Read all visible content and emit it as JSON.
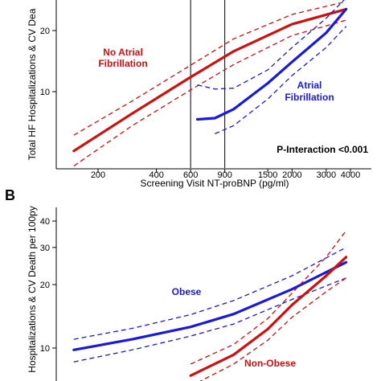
{
  "colors": {
    "red": "#cc1111",
    "blue": "#1a1ad6",
    "axis": "#000000",
    "background": "#ffffff"
  },
  "panel_a": {
    "ylabel": "Total HF Hospitalizations & CV Dea",
    "xlabel": "Screening Visit NT-proBNP (pg/ml)",
    "annotation": "P-Interaction <0.001",
    "label_red_line1": "No Atrial",
    "label_red_line2": "Fibrillation",
    "label_blue_line1": "Atrial",
    "label_blue_line2": "Fibrillation"
  },
  "panel_b": {
    "panel_letter": "B",
    "ylabel": "Hospitalizations & CV Death per 100py",
    "label_blue": "Obese",
    "label_red": "Non-Obese"
  },
  "chart_data": [
    {
      "type": "line",
      "panel": "A",
      "xlabel": "Screening Visit NT-proBNP (pg/ml)",
      "ylabel": "Total HF Hospitalizations & CV Dea",
      "x_scale": "log",
      "y_scale": "log",
      "x_ticks": [
        200,
        400,
        600,
        900,
        1500,
        2000,
        3000,
        4000
      ],
      "y_ticks": [
        10,
        20
      ],
      "vlines": [
        600,
        900
      ],
      "series": [
        {
          "name": "No Atrial Fibrillation",
          "color": "#cc1111",
          "x": [
            150,
            300,
            600,
            1000,
            2000,
            3800
          ],
          "y": [
            5.1,
            7.8,
            11.8,
            15.8,
            21.5,
            25.5
          ],
          "lower": [
            4.3,
            6.8,
            10.2,
            13.6,
            18.9,
            22.5
          ],
          "upper": [
            6.1,
            9.0,
            13.5,
            18.2,
            24.0,
            27.8
          ]
        },
        {
          "name": "Atrial Fibrillation",
          "color": "#1a1ad6",
          "x": [
            650,
            800,
            1000,
            1500,
            2000,
            3000,
            3800
          ],
          "y": [
            7.3,
            7.4,
            8.2,
            11.0,
            14.0,
            19.5,
            25.5
          ],
          "lower": [
            null,
            6.2,
            6.8,
            9.2,
            12.0,
            16.5,
            21.0
          ],
          "upper": [
            10.8,
            10.3,
            10.4,
            12.8,
            16.5,
            23.0,
            29.0
          ]
        }
      ]
    },
    {
      "type": "line",
      "panel": "B",
      "ylabel": "Hospitalizations & CV Death per 100py",
      "x_scale": "log",
      "y_scale": "log",
      "y_ticks": [
        10,
        20,
        30,
        40
      ],
      "series": [
        {
          "name": "Obese",
          "color": "#1a1ad6",
          "x": [
            150,
            300,
            600,
            1000,
            2000,
            3800
          ],
          "y": [
            9.8,
            11.0,
            12.6,
            14.5,
            19.0,
            25.5
          ],
          "lower": [
            8.6,
            9.8,
            11.4,
            13.0,
            17.0,
            21.5
          ],
          "upper": [
            11.0,
            12.4,
            14.4,
            16.8,
            22.0,
            30.0
          ]
        },
        {
          "name": "Non-Obese",
          "color": "#cc1111",
          "x": [
            600,
            1000,
            1500,
            2000,
            3000,
            3800
          ],
          "y": [
            7.4,
            9.3,
            12.3,
            16.0,
            22.0,
            27.0
          ],
          "lower": [
            6.6,
            8.4,
            10.9,
            14.0,
            18.5,
            21.5
          ],
          "upper": [
            8.4,
            10.4,
            13.8,
            18.2,
            27.0,
            36.0
          ]
        }
      ]
    }
  ]
}
